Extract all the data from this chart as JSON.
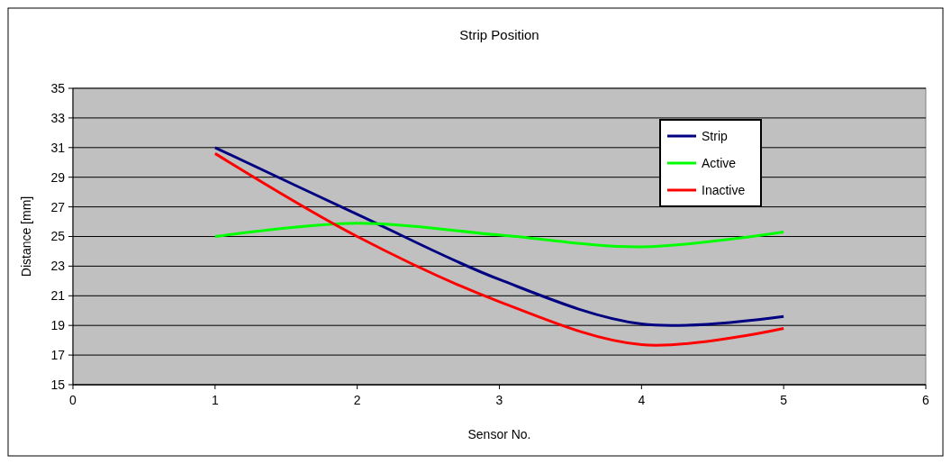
{
  "chart_data": {
    "type": "line",
    "title": "Strip Position",
    "xlabel": "Sensor No.",
    "ylabel": "Distance [mm]",
    "x": [
      1,
      2,
      3,
      4,
      5
    ],
    "series": [
      {
        "name": "Strip",
        "color": "#000080",
        "values": [
          31,
          26.5,
          22.1,
          19.1,
          19.6
        ]
      },
      {
        "name": "Active",
        "color": "#00ff00",
        "values": [
          25,
          25.9,
          25.1,
          24.3,
          25.3
        ]
      },
      {
        "name": "Inactive",
        "color": "#ff0000",
        "values": [
          30.6,
          25,
          20.6,
          17.7,
          18.8
        ]
      }
    ],
    "xlim": [
      0,
      6
    ],
    "xticks": [
      0,
      1,
      2,
      3,
      4,
      5,
      6
    ],
    "ylim": [
      15,
      35
    ],
    "yticks": [
      15,
      17,
      19,
      21,
      23,
      25,
      27,
      29,
      31,
      33,
      35
    ],
    "grid": "y",
    "legend": "top right",
    "marker": "none",
    "line_style": "solid"
  }
}
